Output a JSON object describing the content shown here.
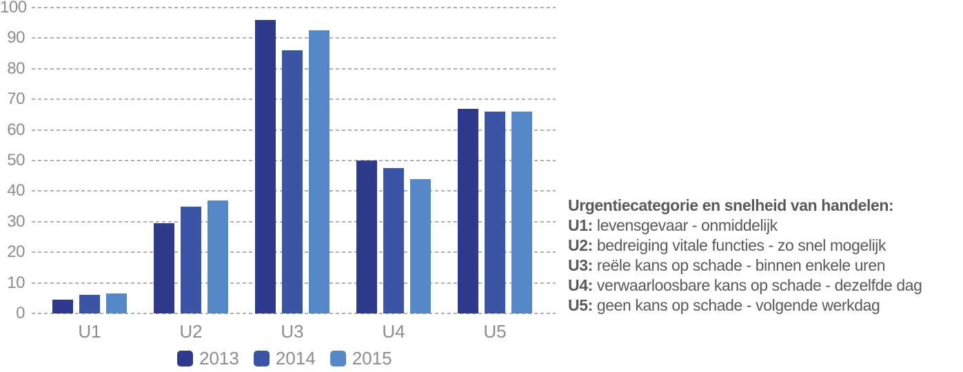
{
  "chart_data": {
    "type": "bar",
    "categories": [
      "U1",
      "U2",
      "U3",
      "U4",
      "U5"
    ],
    "series": [
      {
        "name": "2013",
        "color": "#2e3a8c",
        "values": [
          4.5,
          29.5,
          96,
          50,
          67
        ]
      },
      {
        "name": "2014",
        "color": "#3a55a5",
        "values": [
          6,
          35,
          86,
          47.5,
          66
        ]
      },
      {
        "name": "2015",
        "color": "#5587c9",
        "values": [
          6.5,
          37,
          92.5,
          44,
          66
        ]
      }
    ],
    "title": "",
    "xlabel": "",
    "ylabel": "",
    "ylim": [
      0,
      100
    ],
    "ytick_step": 10,
    "grid": "horizontal-dashed",
    "gridline_color": "#aeb0b3",
    "axis_text_color": "#8a8c8f",
    "legend_position": "bottom"
  },
  "annotation": {
    "title": "Urgentiecategorie en snelheid van handelen:",
    "lines": [
      {
        "prefix": "U1:",
        "text": "levensgevaar - onmiddelijk"
      },
      {
        "prefix": "U2:",
        "text": "bedreiging vitale functies - zo snel mogelijk"
      },
      {
        "prefix": "U3:",
        "text": "reële kans op schade - binnen enkele uren"
      },
      {
        "prefix": "U4:",
        "text": "verwaarloosbare kans op schade - dezelfde dag"
      },
      {
        "prefix": "U5:",
        "text": "geen kans op schade - volgende werkdag"
      }
    ],
    "text_color": "#58595b"
  }
}
